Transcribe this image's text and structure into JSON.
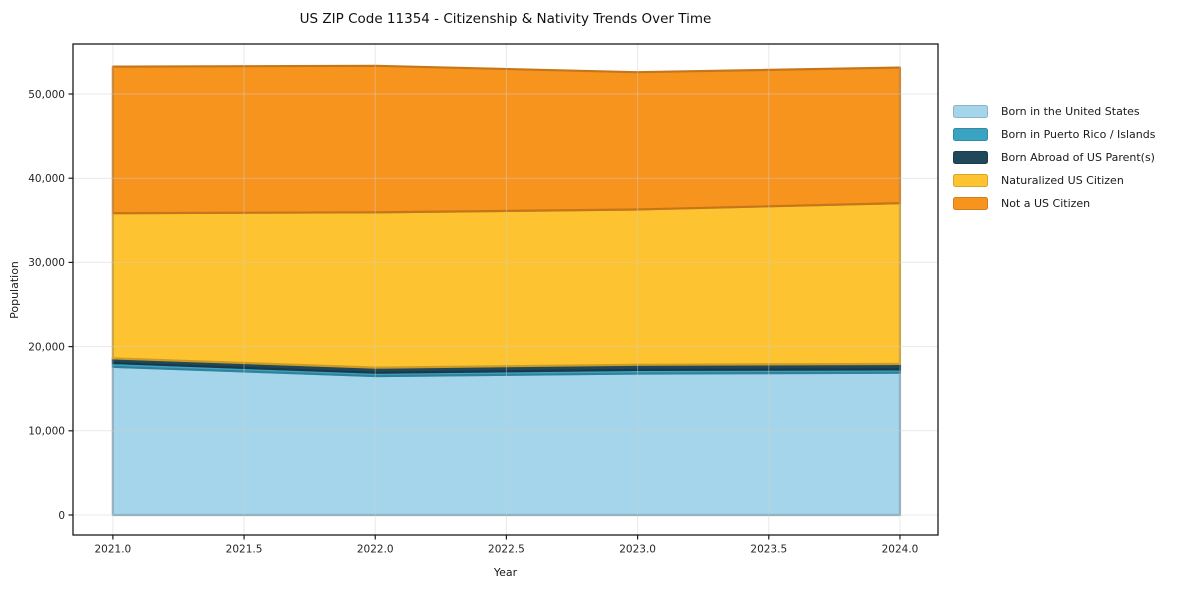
{
  "chart_data": {
    "type": "area",
    "stacked": true,
    "title": "US ZIP Code 11354 - Citizenship & Nativity Trends Over Time",
    "xlabel": "Year",
    "ylabel": "Population",
    "x": [
      2021,
      2022,
      2023,
      2024
    ],
    "series": [
      {
        "name": "Born in the United States",
        "color": "#a5d5ea",
        "values": [
          17600,
          16500,
          16800,
          16900
        ]
      },
      {
        "name": "Born in Puerto Rico / Islands",
        "color": "#3aa3c2",
        "values": [
          450,
          400,
          440,
          400
        ]
      },
      {
        "name": "Born Abroad of US Parent(s)",
        "color": "#21475a",
        "values": [
          550,
          600,
          600,
          640
        ]
      },
      {
        "name": "Naturalized US Citizen",
        "color": "#fdc330",
        "values": [
          17250,
          18450,
          18450,
          19100
        ]
      },
      {
        "name": "Not a US Citizen",
        "color": "#f7941e",
        "values": [
          17400,
          17400,
          16300,
          16100
        ]
      }
    ],
    "x_tick_values": [
      2021,
      2021.5,
      2022,
      2022.5,
      2023,
      2023.5,
      2024
    ],
    "x_tick_labels": [
      "2021.0",
      "2021.5",
      "2022.0",
      "2022.5",
      "2023.0",
      "2023.5",
      "2024.0"
    ],
    "y_tick_values": [
      0,
      10000,
      20000,
      30000,
      40000,
      50000
    ],
    "y_tick_labels": [
      "0",
      "10,000",
      "20,000",
      "30,000",
      "40,000",
      "50,000"
    ],
    "xlim": [
      2020.848,
      2024.145
    ],
    "ylim": [
      -2375,
      55940
    ],
    "grid": true,
    "legend_position": "right",
    "grid_color": "#cfcfcf",
    "spine_color": "#1a1a1a",
    "background_color": "#ffffff"
  }
}
